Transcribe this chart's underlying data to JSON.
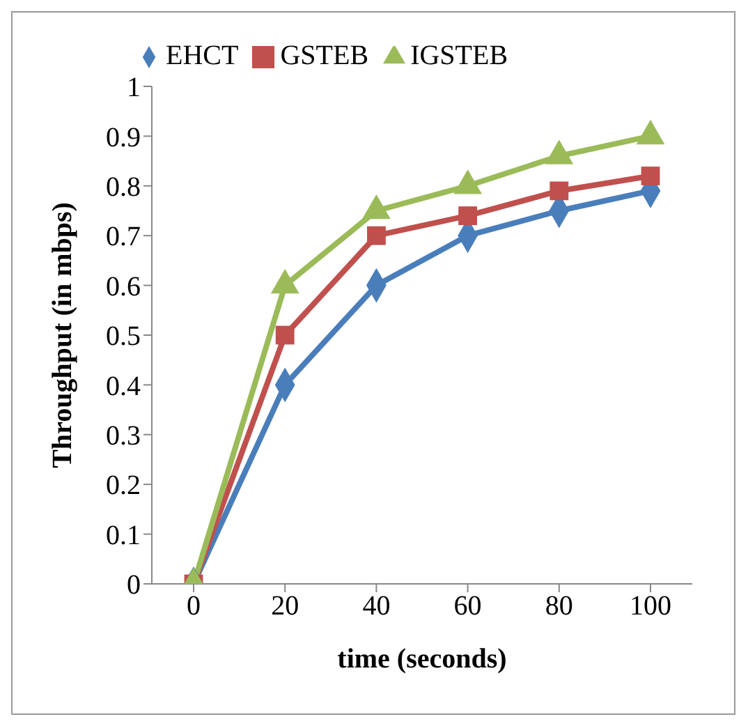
{
  "chart_data": {
    "type": "line",
    "xlabel": "time (seconds)",
    "ylabel": "Throughput (in mbps)",
    "categories": [
      "0",
      "20",
      "40",
      "60",
      "80",
      "100"
    ],
    "series": [
      {
        "name": "EHCT",
        "color": "#4a7ebb",
        "marker": "diamond",
        "values": [
          0,
          0.4,
          0.6,
          0.7,
          0.75,
          0.79
        ]
      },
      {
        "name": "GSTEB",
        "color": "#c0504d",
        "marker": "square",
        "values": [
          0,
          0.5,
          0.7,
          0.74,
          0.79,
          0.82
        ]
      },
      {
        "name": "IGSTEB",
        "color": "#9bbb59",
        "marker": "triangle",
        "values": [
          0,
          0.6,
          0.75,
          0.8,
          0.86,
          0.9
        ]
      }
    ],
    "ylim": [
      0,
      1
    ],
    "yticks": [
      0,
      0.1,
      0.2,
      0.3,
      0.4,
      0.5,
      0.6,
      0.7,
      0.8,
      0.9,
      1
    ],
    "grid": false,
    "legend": "top left",
    "line_style": "solid"
  }
}
